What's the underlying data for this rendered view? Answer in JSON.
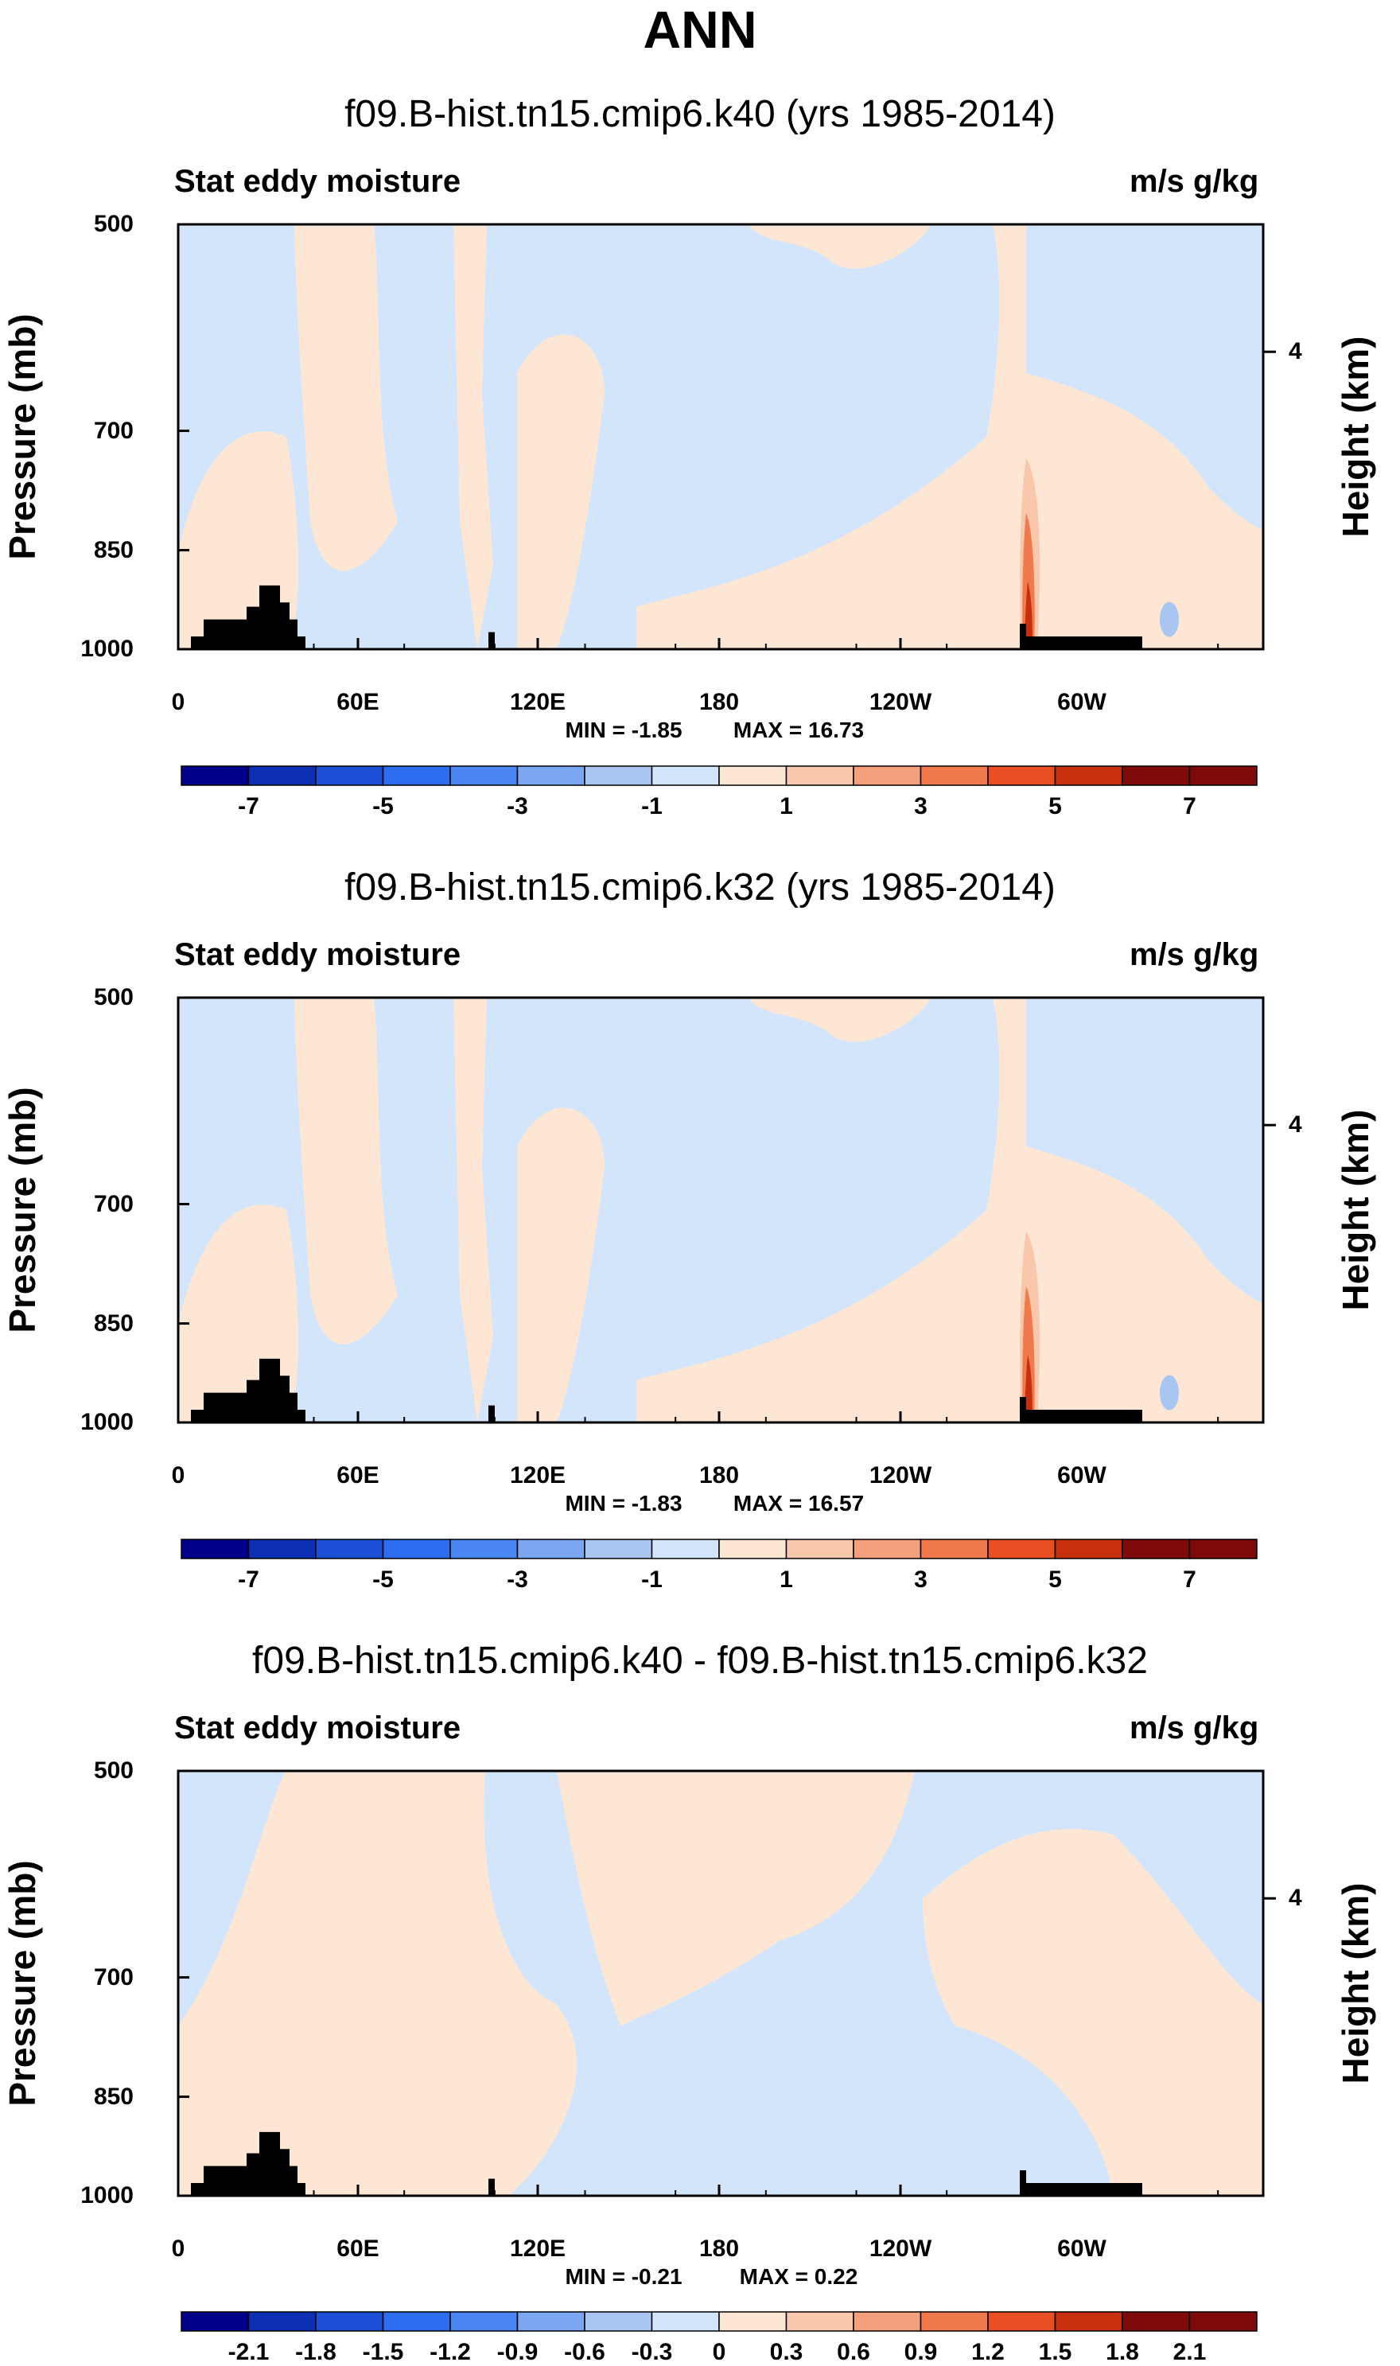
{
  "chart_data": [
    {
      "type": "contour",
      "title": "f09.B-hist.tn15.cmip6.k40 (yrs 1985-2014)",
      "left_string": "Stat eddy moisture",
      "right_string": "m/s g/kg",
      "ylabel": "Pressure (mb)",
      "ylabel_right": "Height (km)",
      "y_ticks": [
        "500",
        "700",
        "850",
        "1000"
      ],
      "y_right_ticks": [
        "4"
      ],
      "x_ticks": [
        "0",
        "60E",
        "120E",
        "180",
        "120W",
        "60W"
      ],
      "min_label": "MIN = -1.85",
      "max_label": "MAX = 16.73",
      "colorbar_labels": [
        "-7",
        "-5",
        "-3",
        "-1",
        "1",
        "3",
        "5",
        "7"
      ]
    },
    {
      "type": "contour",
      "title": "f09.B-hist.tn15.cmip6.k32 (yrs 1985-2014)",
      "left_string": "Stat eddy moisture",
      "right_string": "m/s g/kg",
      "ylabel": "Pressure (mb)",
      "ylabel_right": "Height (km)",
      "y_ticks": [
        "500",
        "700",
        "850",
        "1000"
      ],
      "y_right_ticks": [
        "4"
      ],
      "x_ticks": [
        "0",
        "60E",
        "120E",
        "180",
        "120W",
        "60W"
      ],
      "min_label": "MIN = -1.83",
      "max_label": "MAX = 16.57",
      "colorbar_labels": [
        "-7",
        "-5",
        "-3",
        "-1",
        "1",
        "3",
        "5",
        "7"
      ]
    },
    {
      "type": "contour",
      "title": "f09.B-hist.tn15.cmip6.k40 - f09.B-hist.tn15.cmip6.k32",
      "left_string": "Stat eddy moisture",
      "right_string": "m/s g/kg",
      "ylabel": "Pressure (mb)",
      "ylabel_right": "Height (km)",
      "y_ticks": [
        "500",
        "700",
        "850",
        "1000"
      ],
      "y_right_ticks": [
        "4"
      ],
      "x_ticks": [
        "0",
        "60E",
        "120E",
        "180",
        "120W",
        "60W"
      ],
      "min_label": "MIN = -0.21",
      "max_label": "MAX = 0.22",
      "colorbar_labels": [
        "-2.1",
        "-1.8",
        "-1.5",
        "-1.2",
        "-0.9",
        "-0.6",
        "-0.3",
        "0",
        "0.3",
        "0.6",
        "0.9",
        "1.2",
        "1.5",
        "1.8",
        "2.1"
      ]
    }
  ],
  "main_title": "ANN",
  "colors": {
    "palette": [
      "#00008b",
      "#0c2fb4",
      "#1a4fd6",
      "#2c6cf0",
      "#4a86f2",
      "#7aa6f2",
      "#a9c6f3",
      "#d3e5fb",
      "#fde6d4",
      "#f9c7ac",
      "#f5a07c",
      "#f07a4e",
      "#e94f22",
      "#c6300f",
      "#7f0a0a"
    ],
    "neg_fill": "#d3e5fb",
    "pos_fill": "#fde6d4",
    "topography": "#000000"
  }
}
